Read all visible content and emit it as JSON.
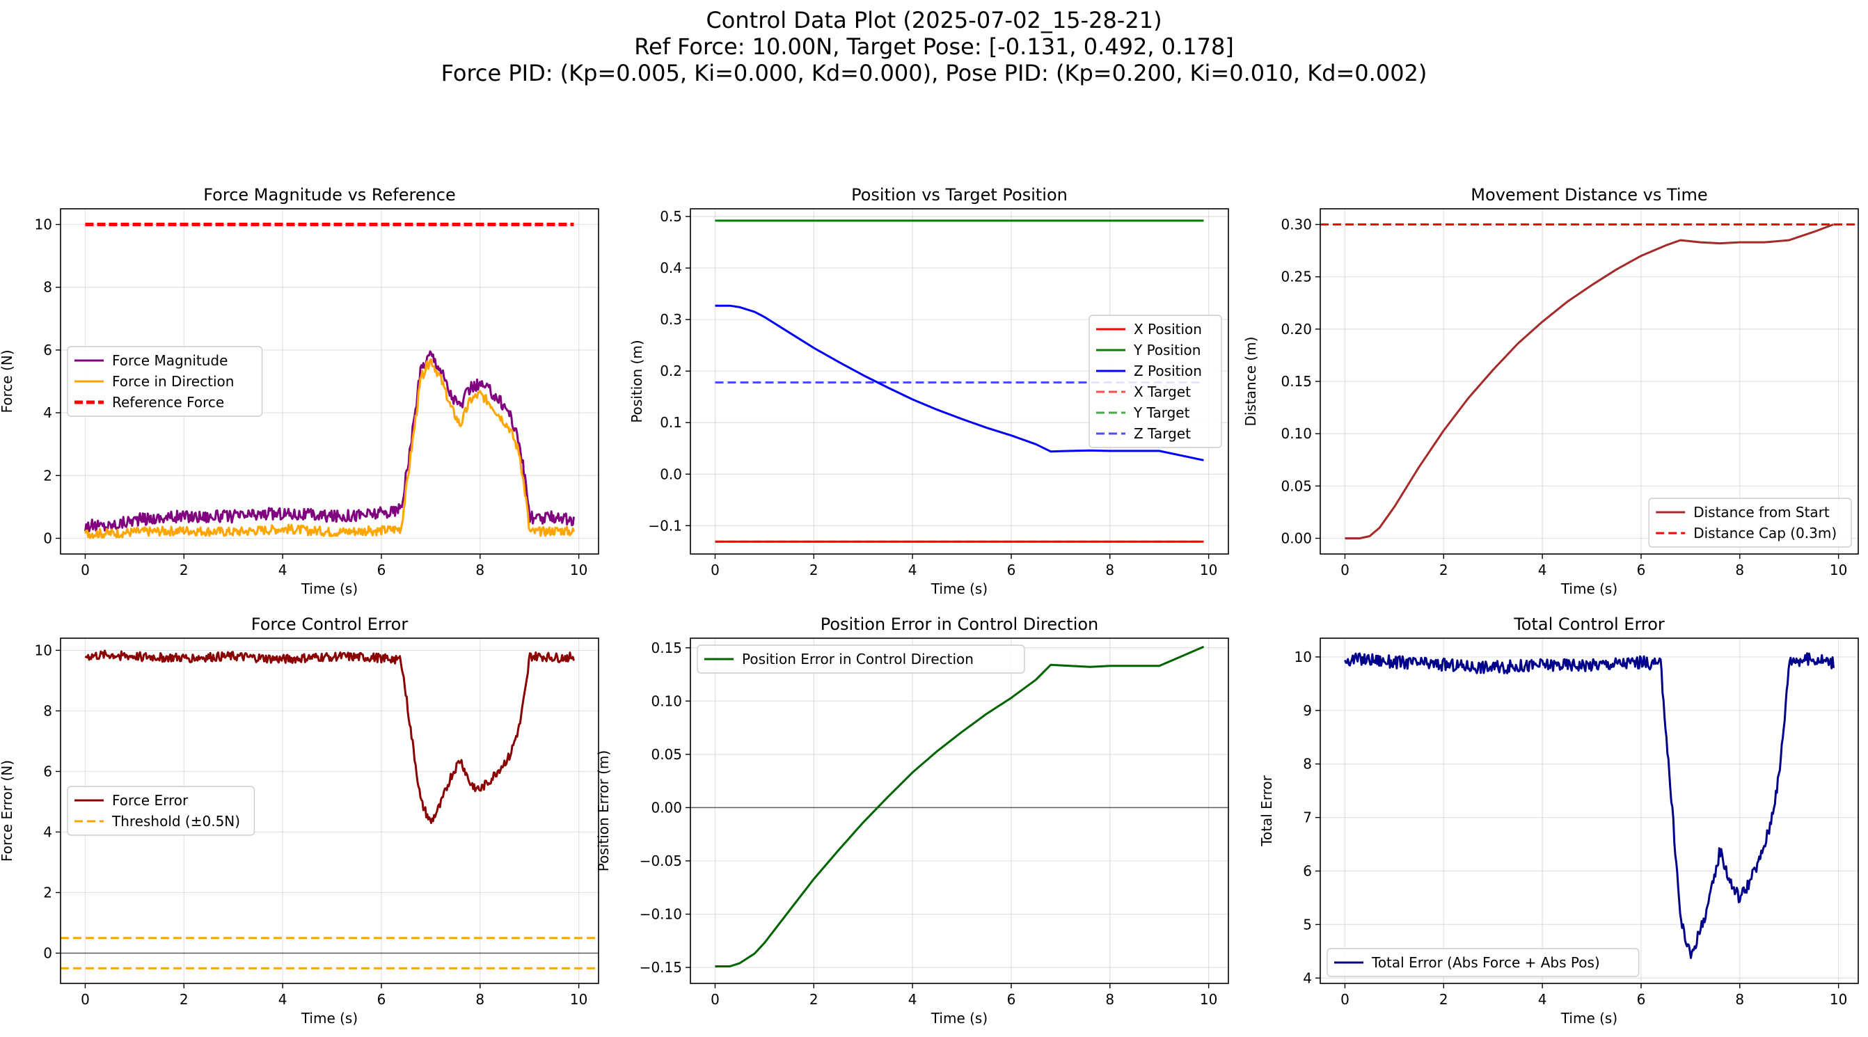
{
  "figure": {
    "title_lines": [
      "Control Data Plot (2025-07-02_15-28-21)",
      "Ref Force: 10.00N, Target Pose: [-0.131, 0.492, 0.178]",
      "Force PID: (Kp=0.005, Ki=0.000, Kd=0.000), Pose PID: (Kp=0.200, Ki=0.010, Kd=0.002)"
    ]
  },
  "chart_data": [
    {
      "type": "line",
      "title": "Force Magnitude vs Reference",
      "xlabel": "Time (s)",
      "ylabel": "Force (N)",
      "xlim": [
        -0.5,
        10.4
      ],
      "ylim": [
        -0.5,
        10.5
      ],
      "xticks": [
        0,
        2,
        4,
        6,
        8,
        10
      ],
      "yticks": [
        0,
        2,
        4,
        6,
        8,
        10
      ],
      "grid": true,
      "legend_position": "center-left",
      "series": [
        {
          "name": "Force Magnitude",
          "color": "#800080",
          "width": 3,
          "dash": "",
          "noise": 0.2,
          "x": [
            0,
            0.5,
            1,
            2,
            3,
            4,
            5,
            6,
            6.4,
            6.6,
            6.8,
            7.0,
            7.2,
            7.4,
            7.6,
            7.8,
            8.0,
            8.2,
            8.4,
            8.6,
            8.8,
            8.95,
            9.0,
            9.2,
            9.6,
            9.9
          ],
          "y": [
            0.4,
            0.4,
            0.6,
            0.7,
            0.7,
            0.8,
            0.7,
            0.8,
            0.9,
            3.0,
            5.4,
            5.9,
            5.4,
            4.6,
            4.2,
            4.8,
            4.9,
            4.7,
            4.4,
            4.0,
            3.0,
            1.5,
            0.7,
            0.6,
            0.7,
            0.5
          ]
        },
        {
          "name": "Force in Direction",
          "color": "#FFA500",
          "width": 3,
          "dash": "",
          "noise": 0.15,
          "x": [
            0,
            0.5,
            1,
            2,
            3,
            4,
            5,
            6,
            6.4,
            6.6,
            6.8,
            7.0,
            7.2,
            7.4,
            7.6,
            7.8,
            8.0,
            8.2,
            8.4,
            8.6,
            8.8,
            8.95,
            9.0,
            9.2,
            9.6,
            9.9
          ],
          "y": [
            0.15,
            0.15,
            0.2,
            0.25,
            0.2,
            0.3,
            0.2,
            0.25,
            0.3,
            2.7,
            5.1,
            5.7,
            5.1,
            4.2,
            3.6,
            4.4,
            4.6,
            4.3,
            3.9,
            3.5,
            2.7,
            1.0,
            0.2,
            0.2,
            0.25,
            0.2
          ]
        },
        {
          "name": "Reference Force",
          "color": "#FF0000",
          "width": 5,
          "dash": "12,5",
          "noise": 0,
          "x": [
            0,
            9.9
          ],
          "y": [
            10,
            10
          ]
        }
      ]
    },
    {
      "type": "line",
      "title": "Position vs Target Position",
      "xlabel": "Time (s)",
      "ylabel": "Position (m)",
      "xlim": [
        -0.5,
        10.4
      ],
      "ylim": [
        -0.155,
        0.515
      ],
      "xticks": [
        0,
        2,
        4,
        6,
        8,
        10
      ],
      "yticks": [
        -0.1,
        0.0,
        0.1,
        0.2,
        0.3,
        0.4,
        0.5
      ],
      "ytick_labels": [
        "−0.1",
        "0.0",
        "0.1",
        "0.2",
        "0.3",
        "0.4",
        "0.5"
      ],
      "grid": true,
      "legend_position": "center-right",
      "series": [
        {
          "name": "X Position",
          "color": "#FF0000",
          "width": 3,
          "dash": "",
          "noise": 0,
          "x": [
            0,
            9.9
          ],
          "y": [
            -0.131,
            -0.131
          ]
        },
        {
          "name": "Y Position",
          "color": "#008000",
          "width": 3,
          "dash": "",
          "noise": 0,
          "x": [
            0,
            9.9
          ],
          "y": [
            0.492,
            0.492
          ]
        },
        {
          "name": "Z Position",
          "color": "#0000FF",
          "width": 3,
          "dash": "",
          "noise": 0,
          "x": [
            0,
            0.3,
            0.5,
            0.8,
            1.0,
            1.5,
            2.0,
            2.5,
            3.0,
            3.5,
            4.0,
            4.5,
            5.0,
            5.5,
            6.0,
            6.5,
            6.8,
            7.2,
            7.6,
            8.0,
            8.5,
            9.0,
            9.5,
            9.9
          ],
          "y": [
            0.327,
            0.327,
            0.324,
            0.315,
            0.305,
            0.275,
            0.245,
            0.218,
            0.192,
            0.168,
            0.145,
            0.125,
            0.107,
            0.09,
            0.075,
            0.058,
            0.044,
            0.045,
            0.046,
            0.045,
            0.045,
            0.045,
            0.035,
            0.027
          ]
        },
        {
          "name": "X Target",
          "color": "#FF0000",
          "width": 3,
          "dash": "12,6",
          "opacity": 0.7,
          "noise": 0,
          "x": [
            0,
            9.9
          ],
          "y": [
            -0.131,
            -0.131
          ]
        },
        {
          "name": "Y Target",
          "color": "#008000",
          "width": 3,
          "dash": "12,6",
          "opacity": 0.7,
          "noise": 0,
          "x": [
            0,
            9.9
          ],
          "y": [
            0.492,
            0.492
          ]
        },
        {
          "name": "Z Target",
          "color": "#0000FF",
          "width": 3,
          "dash": "12,6",
          "opacity": 0.7,
          "noise": 0,
          "x": [
            0,
            9.9
          ],
          "y": [
            0.178,
            0.178
          ]
        }
      ]
    },
    {
      "type": "line",
      "title": "Movement Distance vs Time",
      "xlabel": "Time (s)",
      "ylabel": "Distance (m)",
      "xlim": [
        -0.5,
        10.4
      ],
      "ylim": [
        -0.015,
        0.315
      ],
      "xticks": [
        0,
        2,
        4,
        6,
        8,
        10
      ],
      "yticks": [
        0.0,
        0.05,
        0.1,
        0.15,
        0.2,
        0.25,
        0.3
      ],
      "ytick_labels": [
        "0.00",
        "0.05",
        "0.10",
        "0.15",
        "0.20",
        "0.25",
        "0.30"
      ],
      "grid": true,
      "legend_position": "lower-right",
      "series": [
        {
          "name": "Distance from Start",
          "color": "#A52A2A",
          "width": 3,
          "dash": "",
          "noise": 0,
          "x": [
            0,
            0.3,
            0.5,
            0.7,
            1.0,
            1.5,
            2.0,
            2.5,
            3.0,
            3.5,
            4.0,
            4.5,
            5.0,
            5.5,
            6.0,
            6.5,
            6.8,
            7.2,
            7.6,
            8.0,
            8.5,
            9.0,
            9.5,
            9.9
          ],
          "y": [
            0.0,
            0.0,
            0.002,
            0.01,
            0.03,
            0.068,
            0.103,
            0.134,
            0.161,
            0.186,
            0.207,
            0.226,
            0.242,
            0.257,
            0.27,
            0.28,
            0.285,
            0.283,
            0.282,
            0.283,
            0.283,
            0.285,
            0.293,
            0.3
          ]
        },
        {
          "name": "Distance Cap (0.3m)",
          "color": "#FF0000",
          "width": 3,
          "dash": "12,6",
          "noise": 0,
          "x": [
            -0.5,
            10.4
          ],
          "y": [
            0.3,
            0.3
          ]
        }
      ]
    },
    {
      "type": "line",
      "title": "Force Control Error",
      "xlabel": "Time (s)",
      "ylabel": "Force Error (N)",
      "xlim": [
        -0.5,
        10.4
      ],
      "ylim": [
        -1.0,
        10.4
      ],
      "xticks": [
        0,
        2,
        4,
        6,
        8,
        10
      ],
      "yticks": [
        0,
        2,
        4,
        6,
        8,
        10
      ],
      "grid": true,
      "legend_position": "center-left",
      "zero_line": true,
      "series": [
        {
          "name": "Force Error",
          "color": "#8B0000",
          "width": 3,
          "dash": "",
          "noise": 0.15,
          "x": [
            0,
            0.5,
            1,
            2,
            3,
            4,
            5,
            6,
            6.4,
            6.6,
            6.8,
            7.0,
            7.2,
            7.4,
            7.6,
            7.8,
            8.0,
            8.2,
            8.4,
            8.6,
            8.8,
            8.95,
            9.0,
            9.2,
            9.6,
            9.9
          ],
          "y": [
            9.8,
            9.85,
            9.8,
            9.75,
            9.8,
            9.7,
            9.8,
            9.75,
            9.7,
            7.3,
            5.0,
            4.3,
            4.9,
            5.8,
            6.4,
            5.6,
            5.4,
            5.7,
            6.1,
            6.5,
            7.5,
            9.0,
            9.8,
            9.8,
            9.75,
            9.8
          ]
        },
        {
          "name": "Threshold (±0.5N)",
          "color": "#FFA500",
          "width": 3,
          "dash": "12,6",
          "noise": 0,
          "x": [
            -0.5,
            10.4
          ],
          "y": [
            0.5,
            0.5
          ]
        },
        {
          "name": "",
          "color": "#FFA500",
          "width": 3,
          "dash": "12,6",
          "noise": 0,
          "legend": false,
          "x": [
            -0.5,
            10.4
          ],
          "y": [
            -0.5,
            -0.5
          ]
        }
      ]
    },
    {
      "type": "line",
      "title": "Position Error in Control Direction",
      "xlabel": "Time (s)",
      "ylabel": "Position Error (m)",
      "xlim": [
        -0.5,
        10.4
      ],
      "ylim": [
        -0.165,
        0.159
      ],
      "xticks": [
        0,
        2,
        4,
        6,
        8,
        10
      ],
      "yticks": [
        -0.15,
        -0.1,
        -0.05,
        0.0,
        0.05,
        0.1,
        0.15
      ],
      "ytick_labels": [
        "−0.15",
        "−0.10",
        "−0.05",
        "0.00",
        "0.05",
        "0.10",
        "0.15"
      ],
      "grid": true,
      "legend_position": "upper-left",
      "zero_line": true,
      "series": [
        {
          "name": "Position Error in Control Direction",
          "color": "#006400",
          "width": 3,
          "dash": "",
          "noise": 0,
          "x": [
            0,
            0.3,
            0.5,
            0.8,
            1.0,
            1.5,
            2.0,
            2.5,
            3.0,
            3.5,
            4.0,
            4.5,
            5.0,
            5.5,
            6.0,
            6.5,
            6.8,
            7.2,
            7.6,
            8.0,
            8.5,
            9.0,
            9.5,
            9.9
          ],
          "y": [
            -0.149,
            -0.149,
            -0.146,
            -0.137,
            -0.127,
            -0.097,
            -0.067,
            -0.04,
            -0.014,
            0.01,
            0.033,
            0.053,
            0.071,
            0.088,
            0.103,
            0.12,
            0.134,
            0.133,
            0.132,
            0.133,
            0.133,
            0.133,
            0.143,
            0.151
          ]
        }
      ]
    },
    {
      "type": "line",
      "title": "Total Control Error",
      "xlabel": "Time (s)",
      "ylabel": "Total Error",
      "xlim": [
        -0.5,
        10.4
      ],
      "ylim": [
        3.9,
        10.35
      ],
      "xticks": [
        0,
        2,
        4,
        6,
        8,
        10
      ],
      "yticks": [
        4,
        5,
        6,
        7,
        8,
        9,
        10
      ],
      "grid": true,
      "legend_position": "lower-left",
      "series": [
        {
          "name": "Total Error (Abs Force + Abs Pos)",
          "color": "#00008B",
          "width": 3,
          "dash": "",
          "noise": 0.12,
          "x": [
            0,
            0.5,
            1,
            2,
            3,
            4,
            5,
            6,
            6.4,
            6.6,
            6.8,
            7.0,
            7.2,
            7.4,
            7.6,
            7.8,
            8.0,
            8.2,
            8.4,
            8.6,
            8.8,
            8.95,
            9.0,
            9.2,
            9.6,
            9.9
          ],
          "y": [
            9.95,
            9.95,
            9.9,
            9.85,
            9.8,
            9.85,
            9.85,
            9.9,
            9.85,
            7.5,
            5.1,
            4.4,
            4.9,
            5.5,
            6.4,
            5.8,
            5.5,
            5.8,
            6.2,
            6.8,
            7.8,
            9.3,
            9.95,
            9.95,
            9.95,
            9.9
          ]
        }
      ]
    }
  ]
}
